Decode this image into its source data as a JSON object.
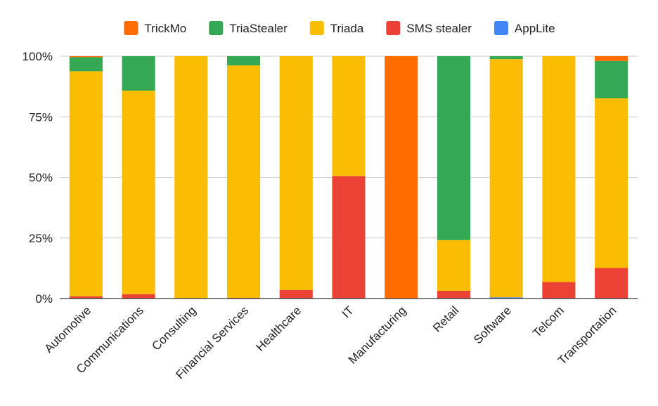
{
  "chart_data": {
    "type": "bar",
    "stacked": true,
    "percent_stacked": true,
    "categories": [
      "Automotive",
      "Communications",
      "Consulting",
      "Financial Services",
      "Healthcare",
      "IT",
      "Manufacturing",
      "Retail",
      "Software",
      "Telcom",
      "Transportation"
    ],
    "series": [
      {
        "name": "SMS stealer",
        "color": "#ea4335",
        "values": [
          0.9,
          1.8,
          0,
          0.3,
          3.5,
          50.5,
          0,
          3.2,
          0,
          6.8,
          12.6
        ]
      },
      {
        "name": "AppLite",
        "color": "#4285f4",
        "values": [
          0,
          0,
          0,
          0,
          0,
          0,
          0,
          0,
          0.5,
          0,
          0
        ]
      },
      {
        "name": "Triada",
        "color": "#fbbc04",
        "values": [
          92.9,
          84.0,
          100,
          95.9,
          96.5,
          49.5,
          0,
          20.9,
          98.3,
          93.2,
          70.0
        ]
      },
      {
        "name": "TriaStealer",
        "color": "#34a853",
        "values": [
          5.8,
          14.2,
          0,
          3.8,
          0,
          0,
          0,
          75.9,
          1.2,
          0,
          15.4
        ]
      },
      {
        "name": "TrickMo",
        "color": "#ff6d01",
        "values": [
          0.4,
          0,
          0,
          0,
          0,
          0,
          100,
          0,
          0,
          0,
          2.0
        ]
      }
    ],
    "legend": {
      "position": "top",
      "order": [
        "TrickMo",
        "TriaStealer",
        "Triada",
        "SMS stealer",
        "AppLite"
      ]
    },
    "y_ticks": [
      "0%",
      "25%",
      "50%",
      "75%",
      "100%"
    ],
    "ylim": [
      0,
      100
    ],
    "grid": true,
    "title": "",
    "xlabel": "",
    "ylabel": ""
  }
}
